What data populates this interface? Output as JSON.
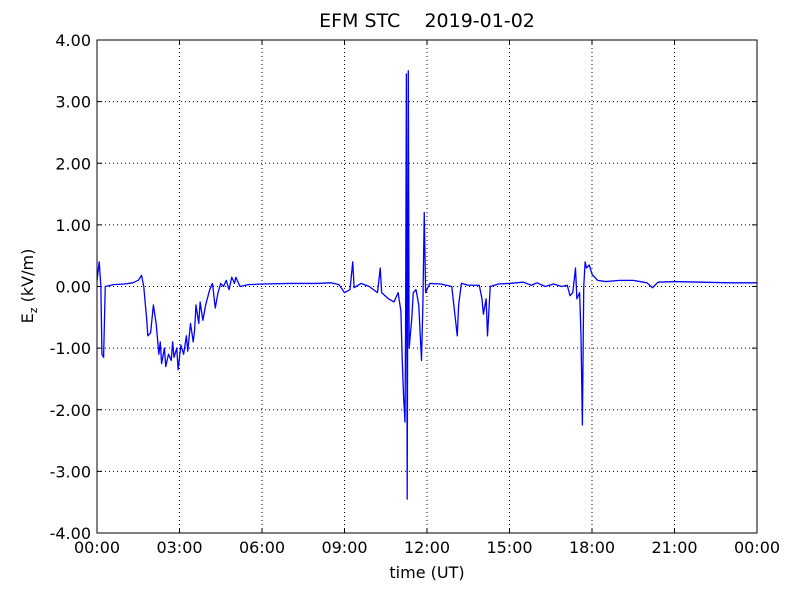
{
  "chart_data": {
    "type": "line",
    "title": "EFM STC    2019-01-02",
    "xlabel": "time (UT)",
    "ylabel": [
      "E",
      "z",
      " (kV/m)"
    ],
    "x": [
      0,
      0.08,
      0.14,
      0.18,
      0.24,
      0.3,
      0.6,
      1.0,
      1.3,
      1.5,
      1.62,
      1.7,
      1.8,
      1.85,
      1.95,
      2.05,
      2.15,
      2.25,
      2.3,
      2.35,
      2.45,
      2.5,
      2.6,
      2.7,
      2.75,
      2.8,
      2.9,
      2.95,
      3.05,
      3.15,
      3.25,
      3.3,
      3.4,
      3.5,
      3.55,
      3.6,
      3.7,
      3.75,
      3.85,
      3.95,
      4.1,
      4.2,
      4.3,
      4.4,
      4.5,
      4.6,
      4.7,
      4.8,
      4.9,
      5.0,
      5.05,
      5.2,
      5.5,
      6.0,
      7.0,
      8.0,
      8.5,
      8.8,
      9.0,
      9.2,
      9.3,
      9.35,
      9.6,
      9.9,
      10.2,
      10.3,
      10.35,
      10.6,
      10.8,
      10.95,
      11.05,
      11.1,
      11.15,
      11.2,
      11.22,
      11.25,
      11.28,
      11.32,
      11.35,
      11.45,
      11.5,
      11.6,
      11.7,
      11.8,
      11.85,
      11.9,
      11.95,
      12.1,
      12.5,
      12.9,
      13.05,
      13.1,
      13.15,
      13.25,
      13.5,
      13.9,
      14.0,
      14.05,
      14.15,
      14.2,
      14.3,
      14.6,
      15.0,
      15.5,
      15.8,
      16.0,
      16.3,
      16.6,
      16.9,
      17.1,
      17.2,
      17.3,
      17.4,
      17.45,
      17.55,
      17.6,
      17.65,
      17.7,
      17.75,
      17.8,
      17.9,
      18.0,
      18.2,
      18.5,
      19.0,
      19.5,
      20.0,
      20.2,
      20.4,
      21.0,
      22.0,
      23.0,
      24.0
    ],
    "series": [
      {
        "name": "Ez",
        "color": "#0000ff",
        "values": [
          0.1,
          0.4,
          0.0,
          -1.1,
          -1.15,
          0.0,
          0.03,
          0.04,
          0.06,
          0.1,
          0.18,
          0.0,
          -0.5,
          -0.8,
          -0.75,
          -0.3,
          -0.6,
          -1.1,
          -0.9,
          -1.25,
          -1.0,
          -1.3,
          -1.1,
          -1.2,
          -0.9,
          -1.15,
          -1.0,
          -1.35,
          -0.95,
          -1.1,
          -0.8,
          -1.05,
          -0.6,
          -0.9,
          -0.7,
          -0.3,
          -0.6,
          -0.25,
          -0.55,
          -0.3,
          -0.05,
          0.05,
          -0.35,
          -0.1,
          0.05,
          0.0,
          0.1,
          -0.05,
          0.15,
          0.05,
          0.15,
          0.0,
          0.03,
          0.04,
          0.05,
          0.05,
          0.06,
          0.03,
          -0.1,
          -0.05,
          0.4,
          -0.02,
          0.05,
          0.0,
          -0.1,
          0.3,
          -0.1,
          -0.2,
          -0.25,
          -0.1,
          -0.4,
          -1.2,
          -1.8,
          -2.2,
          -0.8,
          3.45,
          -3.45,
          3.5,
          -1.0,
          -0.5,
          -0.1,
          -0.05,
          -0.3,
          -1.2,
          -0.3,
          1.2,
          -0.1,
          0.05,
          0.04,
          0.0,
          -0.6,
          -0.8,
          -0.3,
          0.05,
          0.02,
          0.02,
          -0.2,
          -0.45,
          -0.2,
          -0.8,
          0.0,
          0.04,
          0.05,
          0.07,
          0.02,
          0.06,
          0.0,
          0.04,
          0.0,
          0.02,
          -0.15,
          -0.1,
          0.3,
          -0.2,
          -0.1,
          -0.8,
          -2.25,
          0.0,
          0.4,
          0.3,
          0.35,
          0.2,
          0.1,
          0.08,
          0.1,
          0.1,
          0.06,
          -0.02,
          0.07,
          0.08,
          0.07,
          0.06,
          0.06
        ]
      }
    ],
    "xlim": [
      0,
      24
    ],
    "xticks": [
      {
        "value": 0,
        "label": "00:00"
      },
      {
        "value": 3,
        "label": "03:00"
      },
      {
        "value": 6,
        "label": "06:00"
      },
      {
        "value": 9,
        "label": "09:00"
      },
      {
        "value": 12,
        "label": "12:00"
      },
      {
        "value": 15,
        "label": "15:00"
      },
      {
        "value": 18,
        "label": "18:00"
      },
      {
        "value": 21,
        "label": "21:00"
      },
      {
        "value": 24,
        "label": "00:00"
      }
    ],
    "ylim": [
      -4,
      4
    ],
    "yticks": [
      {
        "value": -4,
        "label": "-4.00"
      },
      {
        "value": -3,
        "label": "-3.00"
      },
      {
        "value": -2,
        "label": "-2.00"
      },
      {
        "value": -1,
        "label": "-1.00"
      },
      {
        "value": 0,
        "label": "0.00"
      },
      {
        "value": 1,
        "label": "1.00"
      },
      {
        "value": 2,
        "label": "2.00"
      },
      {
        "value": 3,
        "label": "3.00"
      },
      {
        "value": 4,
        "label": "4.00"
      }
    ],
    "grid": true
  }
}
